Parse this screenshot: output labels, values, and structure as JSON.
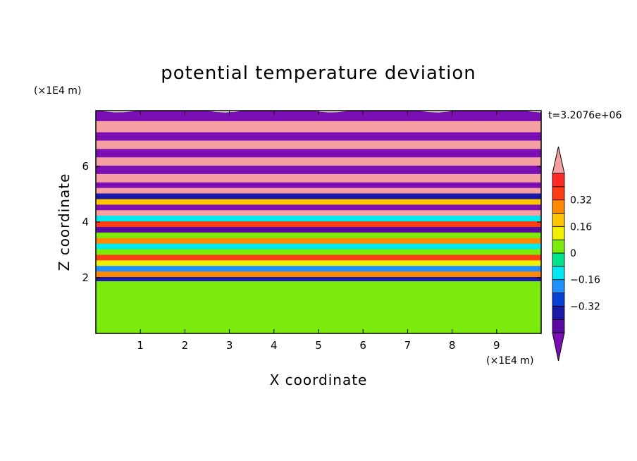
{
  "chart_data": {
    "type": "heatmap",
    "title": "potential temperature deviation",
    "xlabel": "X coordinate",
    "ylabel": "Z coordinate",
    "x_unit": "(×1E4 m)",
    "y_unit": "(×1E4 m)",
    "time_label": "t=3.2076e+06",
    "xlim": [
      0,
      10
    ],
    "ylim": [
      0,
      8
    ],
    "x_ticks": [
      1,
      2,
      3,
      4,
      5,
      6,
      7,
      8,
      9
    ],
    "y_ticks": [
      2,
      4,
      6
    ],
    "colorbar": {
      "levels": [
        -0.48,
        -0.4,
        -0.32,
        -0.24,
        -0.16,
        -0.08,
        0,
        0.08,
        0.16,
        0.24,
        0.32,
        0.4,
        0.48
      ],
      "tick_labels": [
        "0.32",
        "0.16",
        "0",
        "−0.16",
        "−0.32"
      ],
      "tick_values": [
        0.32,
        0.16,
        0,
        -0.16,
        -0.32
      ],
      "colors": [
        "#7b0fb4",
        "#5a0aa0",
        "#1b1aa8",
        "#0a3fd4",
        "#1e90ff",
        "#00e8f0",
        "#00e48c",
        "#7cea0a",
        "#f0f000",
        "#ffc400",
        "#ff8a00",
        "#ff3c14",
        "#ff2828",
        "#f5a0a0"
      ],
      "extend": "both"
    },
    "layers": [
      {
        "z_range": [
          0,
          1.95
        ],
        "value": 0.02
      },
      {
        "z_range": [
          1.95,
          2.1
        ],
        "value": -0.36
      },
      {
        "z_range": [
          2.1,
          2.3
        ],
        "value": 0.3
      },
      {
        "z_range": [
          2.3,
          2.5
        ],
        "value": -0.2
      },
      {
        "z_range": [
          2.5,
          2.7
        ],
        "value": 0.12
      },
      {
        "z_range": [
          2.7,
          2.9
        ],
        "value": 0.36
      },
      {
        "z_range": [
          2.9,
          3.1
        ],
        "value": 0.05
      },
      {
        "z_range": [
          3.1,
          3.3
        ],
        "value": -0.1
      },
      {
        "z_range": [
          3.3,
          3.5
        ],
        "value": 0.28
      },
      {
        "z_range": [
          3.5,
          3.7
        ],
        "value": 0.0
      },
      {
        "z_range": [
          3.7,
          3.9
        ],
        "value": -0.45
      },
      {
        "z_range": [
          3.9,
          4.1
        ],
        "value": 0.34
      },
      {
        "z_range": [
          4.1,
          4.3
        ],
        "value": -0.12
      },
      {
        "z_range": [
          4.3,
          4.5
        ],
        "value": 0.5
      },
      {
        "z_range": [
          4.5,
          4.7
        ],
        "value": -0.5
      },
      {
        "z_range": [
          4.7,
          4.9
        ],
        "value": 0.18
      },
      {
        "z_range": [
          4.9,
          5.1
        ],
        "value": -0.4
      },
      {
        "z_range": [
          5.1,
          5.3
        ],
        "value": 0.5
      },
      {
        "z_range": [
          5.3,
          5.5
        ],
        "value": -0.5
      },
      {
        "z_range": [
          5.5,
          5.8
        ],
        "value": 0.5
      },
      {
        "z_range": [
          5.8,
          6.1
        ],
        "value": -0.5
      },
      {
        "z_range": [
          6.1,
          6.4
        ],
        "value": 0.5
      },
      {
        "z_range": [
          6.4,
          6.7
        ],
        "value": -0.5
      },
      {
        "z_range": [
          6.7,
          7.0
        ],
        "value": 0.5
      },
      {
        "z_range": [
          7.0,
          7.3
        ],
        "value": -0.5
      },
      {
        "z_range": [
          7.3,
          7.7
        ],
        "value": 0.5
      },
      {
        "z_range": [
          7.7,
          8.0
        ],
        "value": -0.5
      }
    ]
  }
}
